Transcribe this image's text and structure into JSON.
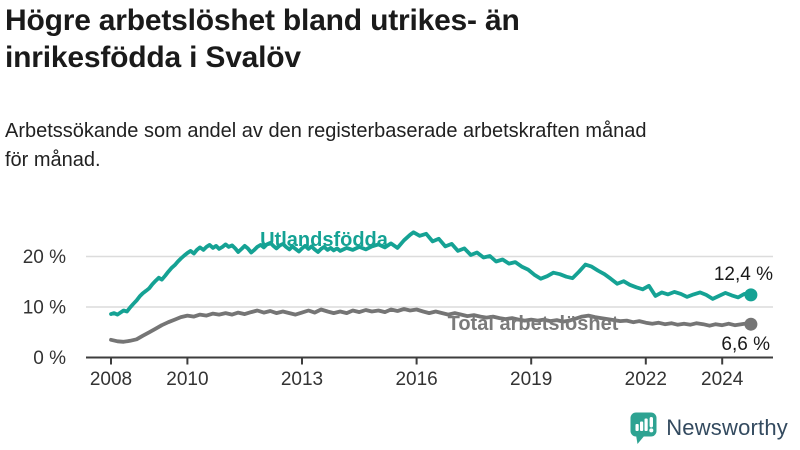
{
  "header": {
    "title_lines": [
      "Högre arbetslöshet bland utrikes- än",
      "inrikesfödda i Svalöv"
    ],
    "subtitle_lines": [
      "Arbetssökande som andel av den registerbaserade arbetskraften månad",
      "för månad."
    ]
  },
  "footer": {
    "brand": "Newsworthy",
    "logo_icon": "bar-chart-speech-bubble-icon",
    "brand_color": "#334a5f",
    "icon_color": "#2ea392"
  },
  "colors": {
    "accent_teal": "#15a294",
    "line_gray": "#757575",
    "grid": "#dcdcdc",
    "axis": "#3d3d3d",
    "axis_text": "#333333",
    "value_text": "#1a1a1a"
  },
  "chart_data": {
    "type": "line",
    "title": "Högre arbetslöshet bland utrikes- än inrikesfödda i Svalöv",
    "subtitle": "Arbetssökande som andel av den registerbaserade arbetskraften månad för månad.",
    "xlabel": "",
    "ylabel": "",
    "unit": "%",
    "grid": "horizontal",
    "legend_position": "inline-labels",
    "xlim": [
      2008,
      2024.75
    ],
    "ylim": [
      0,
      26
    ],
    "x_ticks": [
      2008,
      2010,
      2013,
      2016,
      2019,
      2022,
      2024
    ],
    "y_ticks": [
      0,
      10,
      20
    ],
    "y_tick_labels": [
      "0 %",
      "10 %",
      "20 %"
    ],
    "series": [
      {
        "name": "Utlandsfödda",
        "color": "#15a294",
        "end_value": 12.4,
        "end_label": "12,4 %",
        "points": [
          [
            2008.0,
            8.6
          ],
          [
            2008.08,
            8.8
          ],
          [
            2008.17,
            8.5
          ],
          [
            2008.25,
            8.9
          ],
          [
            2008.33,
            9.3
          ],
          [
            2008.42,
            9.1
          ],
          [
            2008.5,
            9.9
          ],
          [
            2008.58,
            10.6
          ],
          [
            2008.67,
            11.3
          ],
          [
            2008.75,
            12.1
          ],
          [
            2008.83,
            12.7
          ],
          [
            2008.92,
            13.2
          ],
          [
            2009.0,
            13.7
          ],
          [
            2009.08,
            14.5
          ],
          [
            2009.17,
            15.2
          ],
          [
            2009.25,
            15.8
          ],
          [
            2009.33,
            15.4
          ],
          [
            2009.42,
            16.2
          ],
          [
            2009.5,
            17.0
          ],
          [
            2009.58,
            17.7
          ],
          [
            2009.67,
            18.3
          ],
          [
            2009.75,
            19.0
          ],
          [
            2009.83,
            19.6
          ],
          [
            2009.92,
            20.2
          ],
          [
            2010.0,
            20.7
          ],
          [
            2010.08,
            21.1
          ],
          [
            2010.17,
            20.6
          ],
          [
            2010.25,
            21.3
          ],
          [
            2010.33,
            21.8
          ],
          [
            2010.42,
            21.3
          ],
          [
            2010.5,
            21.9
          ],
          [
            2010.58,
            22.3
          ],
          [
            2010.67,
            21.7
          ],
          [
            2010.75,
            22.1
          ],
          [
            2010.83,
            21.5
          ],
          [
            2010.92,
            21.9
          ],
          [
            2011.0,
            22.4
          ],
          [
            2011.08,
            21.9
          ],
          [
            2011.17,
            22.2
          ],
          [
            2011.25,
            21.6
          ],
          [
            2011.33,
            20.9
          ],
          [
            2011.42,
            21.5
          ],
          [
            2011.5,
            22.1
          ],
          [
            2011.58,
            21.6
          ],
          [
            2011.67,
            20.8
          ],
          [
            2011.75,
            21.3
          ],
          [
            2011.83,
            21.9
          ],
          [
            2011.92,
            22.3
          ],
          [
            2012.0,
            21.8
          ],
          [
            2012.08,
            22.4
          ],
          [
            2012.17,
            22.7
          ],
          [
            2012.25,
            22.1
          ],
          [
            2012.33,
            21.6
          ],
          [
            2012.42,
            22.2
          ],
          [
            2012.5,
            22.5
          ],
          [
            2012.58,
            21.9
          ],
          [
            2012.67,
            21.4
          ],
          [
            2012.75,
            22.0
          ],
          [
            2012.83,
            21.5
          ],
          [
            2012.92,
            21.0
          ],
          [
            2013.0,
            21.6
          ],
          [
            2013.08,
            22.1
          ],
          [
            2013.17,
            21.5
          ],
          [
            2013.25,
            22.0
          ],
          [
            2013.33,
            21.4
          ],
          [
            2013.42,
            20.9
          ],
          [
            2013.5,
            21.5
          ],
          [
            2013.58,
            21.9
          ],
          [
            2013.67,
            21.3
          ],
          [
            2013.75,
            21.7
          ],
          [
            2013.83,
            21.2
          ],
          [
            2013.92,
            21.6
          ],
          [
            2014.0,
            21.1
          ],
          [
            2014.17,
            21.7
          ],
          [
            2014.33,
            21.3
          ],
          [
            2014.5,
            21.9
          ],
          [
            2014.67,
            21.4
          ],
          [
            2014.83,
            22.0
          ],
          [
            2015.0,
            22.4
          ],
          [
            2015.17,
            21.8
          ],
          [
            2015.33,
            22.6
          ],
          [
            2015.5,
            21.7
          ],
          [
            2015.67,
            23.2
          ],
          [
            2015.83,
            24.3
          ],
          [
            2015.92,
            24.8
          ],
          [
            2016.08,
            24.1
          ],
          [
            2016.25,
            24.5
          ],
          [
            2016.42,
            23.0
          ],
          [
            2016.58,
            23.5
          ],
          [
            2016.75,
            22.0
          ],
          [
            2016.92,
            22.5
          ],
          [
            2017.08,
            21.1
          ],
          [
            2017.25,
            21.6
          ],
          [
            2017.42,
            20.3
          ],
          [
            2017.58,
            20.8
          ],
          [
            2017.75,
            19.8
          ],
          [
            2017.92,
            20.1
          ],
          [
            2018.08,
            19.0
          ],
          [
            2018.25,
            19.4
          ],
          [
            2018.42,
            18.6
          ],
          [
            2018.58,
            18.9
          ],
          [
            2018.75,
            18.0
          ],
          [
            2018.92,
            17.4
          ],
          [
            2019.08,
            16.4
          ],
          [
            2019.25,
            15.6
          ],
          [
            2019.42,
            16.1
          ],
          [
            2019.58,
            16.8
          ],
          [
            2019.75,
            16.5
          ],
          [
            2019.92,
            16.0
          ],
          [
            2020.08,
            15.7
          ],
          [
            2020.25,
            17.0
          ],
          [
            2020.42,
            18.4
          ],
          [
            2020.58,
            18.0
          ],
          [
            2020.75,
            17.2
          ],
          [
            2020.92,
            16.5
          ],
          [
            2021.08,
            15.6
          ],
          [
            2021.25,
            14.6
          ],
          [
            2021.42,
            15.1
          ],
          [
            2021.58,
            14.4
          ],
          [
            2021.75,
            13.9
          ],
          [
            2021.92,
            13.5
          ],
          [
            2022.08,
            14.2
          ],
          [
            2022.25,
            12.2
          ],
          [
            2022.42,
            12.9
          ],
          [
            2022.58,
            12.5
          ],
          [
            2022.75,
            13.0
          ],
          [
            2022.92,
            12.6
          ],
          [
            2023.08,
            12.0
          ],
          [
            2023.25,
            12.5
          ],
          [
            2023.42,
            12.9
          ],
          [
            2023.58,
            12.4
          ],
          [
            2023.75,
            11.6
          ],
          [
            2023.92,
            12.2
          ],
          [
            2024.08,
            12.8
          ],
          [
            2024.25,
            12.3
          ],
          [
            2024.42,
            11.9
          ],
          [
            2024.58,
            12.6
          ],
          [
            2024.75,
            12.4
          ]
        ]
      },
      {
        "name": "Total arbetslöshet",
        "color": "#757575",
        "end_value": 6.6,
        "end_label": "6,6 %",
        "points": [
          [
            2008.0,
            3.5
          ],
          [
            2008.17,
            3.2
          ],
          [
            2008.33,
            3.1
          ],
          [
            2008.5,
            3.3
          ],
          [
            2008.67,
            3.6
          ],
          [
            2008.83,
            4.3
          ],
          [
            2009.0,
            5.0
          ],
          [
            2009.17,
            5.7
          ],
          [
            2009.33,
            6.4
          ],
          [
            2009.5,
            7.0
          ],
          [
            2009.67,
            7.5
          ],
          [
            2009.83,
            8.0
          ],
          [
            2010.0,
            8.3
          ],
          [
            2010.17,
            8.1
          ],
          [
            2010.33,
            8.5
          ],
          [
            2010.5,
            8.3
          ],
          [
            2010.67,
            8.7
          ],
          [
            2010.83,
            8.5
          ],
          [
            2011.0,
            8.8
          ],
          [
            2011.17,
            8.5
          ],
          [
            2011.33,
            8.9
          ],
          [
            2011.5,
            8.6
          ],
          [
            2011.67,
            9.0
          ],
          [
            2011.83,
            9.3
          ],
          [
            2012.0,
            8.9
          ],
          [
            2012.17,
            9.2
          ],
          [
            2012.33,
            8.8
          ],
          [
            2012.5,
            9.1
          ],
          [
            2012.67,
            8.8
          ],
          [
            2012.83,
            8.5
          ],
          [
            2013.0,
            8.9
          ],
          [
            2013.17,
            9.3
          ],
          [
            2013.33,
            8.9
          ],
          [
            2013.5,
            9.5
          ],
          [
            2013.67,
            9.1
          ],
          [
            2013.83,
            8.8
          ],
          [
            2014.0,
            9.1
          ],
          [
            2014.17,
            8.8
          ],
          [
            2014.33,
            9.3
          ],
          [
            2014.5,
            9.0
          ],
          [
            2014.67,
            9.4
          ],
          [
            2014.83,
            9.1
          ],
          [
            2015.0,
            9.3
          ],
          [
            2015.17,
            9.0
          ],
          [
            2015.33,
            9.5
          ],
          [
            2015.5,
            9.2
          ],
          [
            2015.67,
            9.6
          ],
          [
            2015.83,
            9.3
          ],
          [
            2016.0,
            9.5
          ],
          [
            2016.17,
            9.1
          ],
          [
            2016.33,
            8.8
          ],
          [
            2016.5,
            9.1
          ],
          [
            2016.67,
            8.8
          ],
          [
            2016.83,
            8.5
          ],
          [
            2017.0,
            8.8
          ],
          [
            2017.17,
            8.5
          ],
          [
            2017.33,
            8.2
          ],
          [
            2017.5,
            8.4
          ],
          [
            2017.67,
            8.1
          ],
          [
            2017.83,
            7.9
          ],
          [
            2018.0,
            8.1
          ],
          [
            2018.17,
            7.8
          ],
          [
            2018.33,
            7.6
          ],
          [
            2018.5,
            7.8
          ],
          [
            2018.67,
            7.5
          ],
          [
            2018.83,
            7.3
          ],
          [
            2019.0,
            7.5
          ],
          [
            2019.17,
            7.3
          ],
          [
            2019.33,
            7.5
          ],
          [
            2019.5,
            7.2
          ],
          [
            2019.67,
            7.4
          ],
          [
            2019.83,
            7.1
          ],
          [
            2020.0,
            7.3
          ],
          [
            2020.17,
            7.7
          ],
          [
            2020.33,
            8.1
          ],
          [
            2020.5,
            8.3
          ],
          [
            2020.67,
            8.0
          ],
          [
            2020.83,
            7.8
          ],
          [
            2021.0,
            7.6
          ],
          [
            2021.17,
            7.4
          ],
          [
            2021.33,
            7.2
          ],
          [
            2021.5,
            7.3
          ],
          [
            2021.67,
            7.0
          ],
          [
            2021.83,
            7.2
          ],
          [
            2022.0,
            6.9
          ],
          [
            2022.17,
            6.7
          ],
          [
            2022.33,
            6.9
          ],
          [
            2022.5,
            6.6
          ],
          [
            2022.67,
            6.8
          ],
          [
            2022.83,
            6.5
          ],
          [
            2023.0,
            6.7
          ],
          [
            2023.17,
            6.5
          ],
          [
            2023.33,
            6.8
          ],
          [
            2023.5,
            6.6
          ],
          [
            2023.67,
            6.3
          ],
          [
            2023.83,
            6.6
          ],
          [
            2024.0,
            6.4
          ],
          [
            2024.17,
            6.7
          ],
          [
            2024.33,
            6.4
          ],
          [
            2024.5,
            6.6
          ],
          [
            2024.67,
            6.8
          ],
          [
            2024.75,
            6.6
          ]
        ]
      }
    ]
  }
}
